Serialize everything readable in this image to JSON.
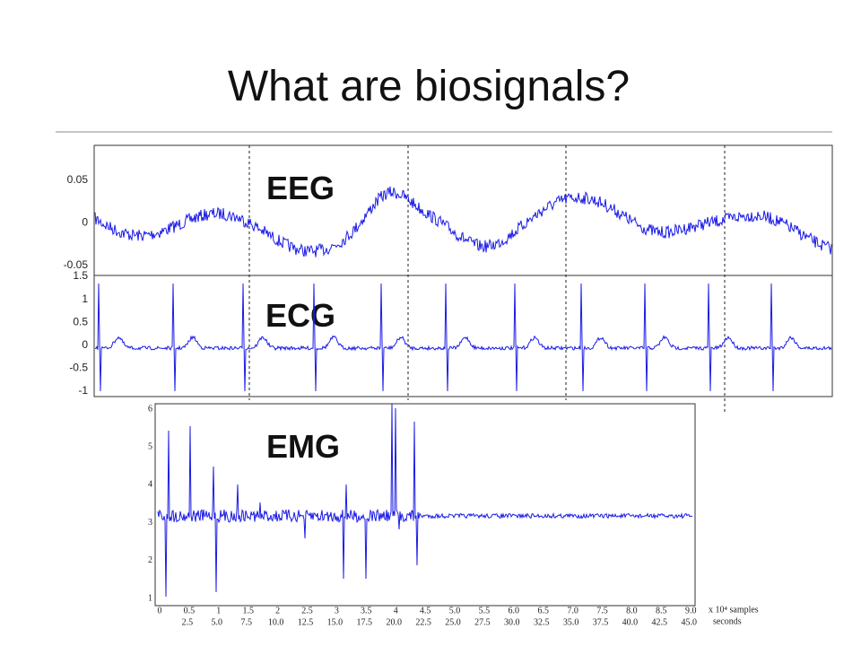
{
  "title": "What are biosignals?",
  "eeg": {
    "label": "EEG",
    "yticks": [
      "0.05",
      "0",
      "-0.05"
    ]
  },
  "ecg": {
    "label": "ECG",
    "yticks": [
      "1.5",
      "1",
      "0.5",
      "0",
      "-0.5",
      "-1"
    ]
  },
  "emg": {
    "label": "EMG",
    "yticks": [
      "1",
      "2",
      "3",
      "4",
      "5",
      "6"
    ],
    "xticks": [
      "0",
      "0.5",
      "1",
      "1.5",
      "2",
      "2.5",
      "3",
      "3.5",
      "4",
      "4.5",
      "5.0",
      "5.5",
      "6.0",
      "6.5",
      "7.0",
      "7.5",
      "8.0",
      "8.5",
      "9.0"
    ],
    "seconds": [
      "2.5",
      "5.0",
      "7.5",
      "10.0",
      "12.5",
      "15.0",
      "17.5",
      "20.0",
      "22.5",
      "25.0",
      "27.5",
      "30.0",
      "32.5",
      "35.0",
      "37.5",
      "40.0",
      "42.5",
      "45.0"
    ],
    "samples_label": "x 10⁴ samples",
    "seconds_label": "seconds"
  }
}
